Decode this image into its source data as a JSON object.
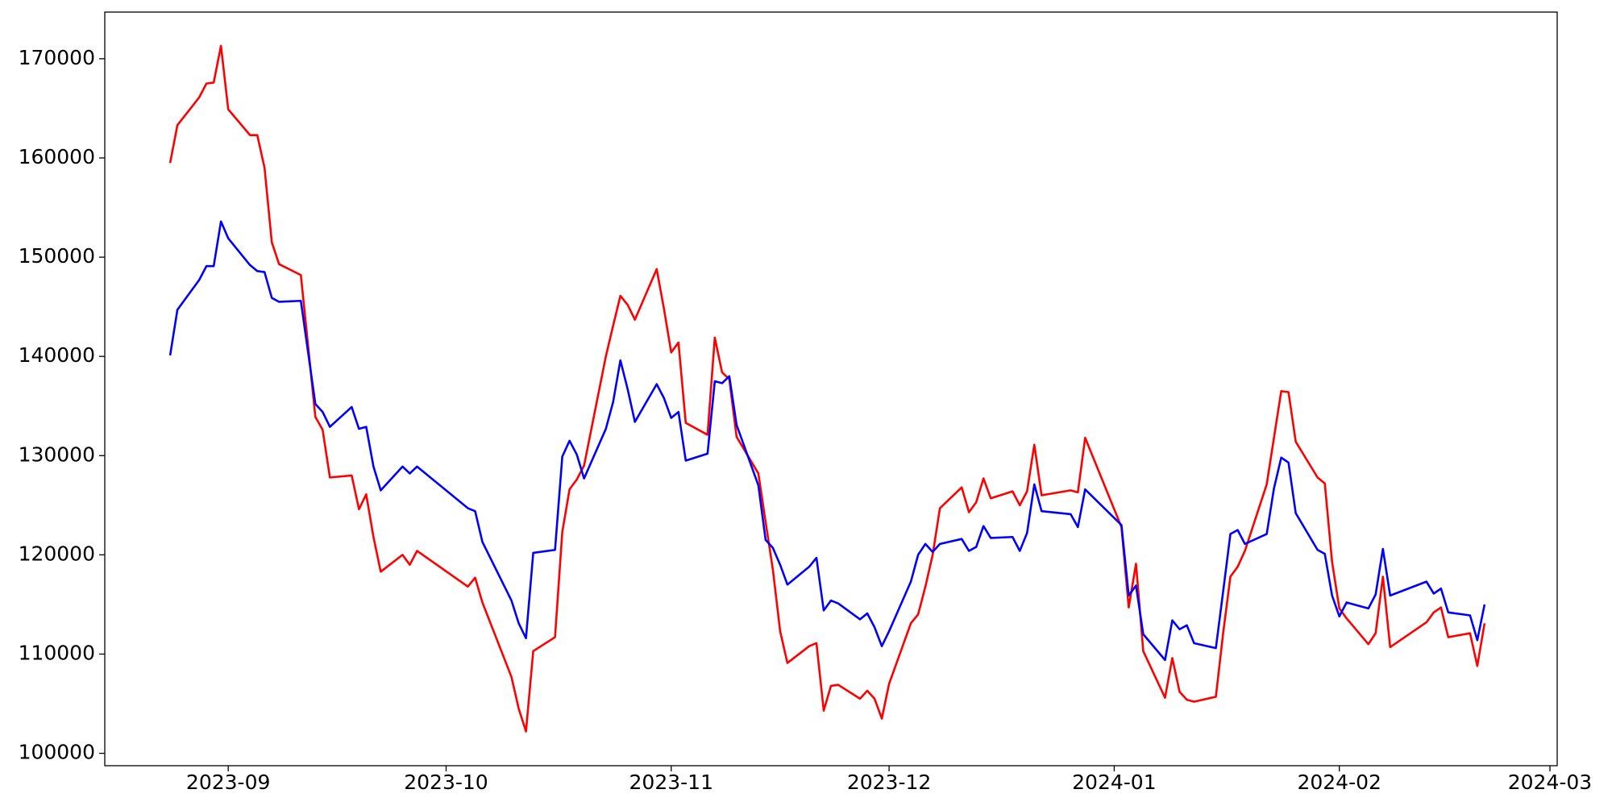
{
  "chart_data": {
    "type": "line",
    "x": [
      "2023-08-24",
      "2023-08-25",
      "2023-08-28",
      "2023-08-29",
      "2023-08-30",
      "2023-08-31",
      "2023-09-01",
      "2023-09-04",
      "2023-09-05",
      "2023-09-06",
      "2023-09-07",
      "2023-09-08",
      "2023-09-11",
      "2023-09-13",
      "2023-09-14",
      "2023-09-15",
      "2023-09-18",
      "2023-09-19",
      "2023-09-20",
      "2023-09-21",
      "2023-09-22",
      "2023-09-25",
      "2023-09-26",
      "2023-09-27",
      "2023-10-04",
      "2023-10-05",
      "2023-10-06",
      "2023-10-10",
      "2023-10-11",
      "2023-10-12",
      "2023-10-13",
      "2023-10-16",
      "2023-10-17",
      "2023-10-18",
      "2023-10-19",
      "2023-10-20",
      "2023-10-23",
      "2023-10-24",
      "2023-10-25",
      "2023-10-26",
      "2023-10-27",
      "2023-10-30",
      "2023-10-31",
      "2023-11-01",
      "2023-11-02",
      "2023-11-03",
      "2023-11-06",
      "2023-11-07",
      "2023-11-08",
      "2023-11-09",
      "2023-11-10",
      "2023-11-13",
      "2023-11-14",
      "2023-11-15",
      "2023-11-16",
      "2023-11-17",
      "2023-11-20",
      "2023-11-21",
      "2023-11-22",
      "2023-11-23",
      "2023-11-24",
      "2023-11-27",
      "2023-11-28",
      "2023-11-29",
      "2023-11-30",
      "2023-12-01",
      "2023-12-04",
      "2023-12-05",
      "2023-12-06",
      "2023-12-07",
      "2023-12-08",
      "2023-12-11",
      "2023-12-12",
      "2023-12-13",
      "2023-12-14",
      "2023-12-15",
      "2023-12-18",
      "2023-12-19",
      "2023-12-20",
      "2023-12-21",
      "2023-12-22",
      "2023-12-26",
      "2023-12-27",
      "2023-12-28",
      "2024-01-02",
      "2024-01-03",
      "2024-01-04",
      "2024-01-05",
      "2024-01-08",
      "2024-01-09",
      "2024-01-10",
      "2024-01-11",
      "2024-01-12",
      "2024-01-15",
      "2024-01-16",
      "2024-01-17",
      "2024-01-18",
      "2024-01-19",
      "2024-01-22",
      "2024-01-23",
      "2024-01-24",
      "2024-01-25",
      "2024-01-26",
      "2024-01-29",
      "2024-01-30",
      "2024-01-31",
      "2024-02-01",
      "2024-02-02",
      "2024-02-05",
      "2024-02-06",
      "2024-02-07",
      "2024-02-08",
      "2024-02-13",
      "2024-02-14",
      "2024-02-15",
      "2024-02-16",
      "2024-02-19",
      "2024-02-20",
      "2024-02-21"
    ],
    "series": [
      {
        "color": "#ff0000",
        "values": [
          159500,
          163300,
          166100,
          167500,
          167600,
          171300,
          164900,
          162300,
          162300,
          159000,
          151500,
          149300,
          148200,
          133900,
          132600,
          127800,
          128000,
          124600,
          126100,
          121800,
          118300,
          120000,
          119000,
          120400,
          116800,
          117700,
          115200,
          107700,
          104500,
          102200,
          110300,
          111700,
          122300,
          126600,
          127600,
          129000,
          140000,
          143100,
          146100,
          145200,
          143700,
          148800,
          144800,
          140400,
          141400,
          133300,
          132100,
          141900,
          138400,
          137700,
          131900,
          128200,
          123300,
          118500,
          112300,
          109100,
          110800,
          111100,
          104300,
          106800,
          106900,
          105500,
          106300,
          105500,
          103500,
          107000,
          113100,
          114000,
          116800,
          120000,
          124700,
          126800,
          124300,
          125300,
          127700,
          125700,
          126400,
          125000,
          126400,
          131100,
          126000,
          126500,
          126300,
          131800,
          122800,
          114700,
          119100,
          110300,
          105600,
          109600,
          106200,
          105400,
          105200,
          105700,
          112100,
          117800,
          118800,
          120400,
          127100,
          131800,
          136500,
          136400,
          131400,
          127800,
          127200,
          119300,
          114600,
          113600,
          111000,
          112100,
          117800,
          110700,
          113200,
          114200,
          114700,
          111700,
          112100,
          108800,
          113100
        ]
      },
      {
        "color": "#0000ff",
        "values": [
          140100,
          144700,
          147700,
          149100,
          149100,
          153600,
          151900,
          149200,
          148600,
          148500,
          145900,
          145500,
          145600,
          135200,
          134400,
          132900,
          134900,
          132700,
          132900,
          128900,
          126500,
          128900,
          128200,
          128900,
          124700,
          124400,
          121300,
          115400,
          113100,
          111600,
          120200,
          120500,
          129900,
          131500,
          130100,
          127700,
          132700,
          135400,
          139600,
          136700,
          133400,
          137200,
          135800,
          133800,
          134400,
          129500,
          130200,
          137500,
          137300,
          138000,
          133100,
          127000,
          121500,
          120700,
          119000,
          117000,
          118800,
          119700,
          114400,
          115400,
          115100,
          113500,
          114100,
          112700,
          110800,
          112300,
          117300,
          120000,
          121100,
          120300,
          121100,
          121600,
          120400,
          120800,
          122900,
          121700,
          121800,
          120400,
          122200,
          127100,
          124400,
          124100,
          122800,
          126600,
          123000,
          115900,
          116900,
          112000,
          109400,
          113400,
          112500,
          112900,
          111100,
          110600,
          116300,
          122100,
          122500,
          121100,
          122100,
          126700,
          129800,
          129300,
          124200,
          120500,
          120100,
          115900,
          113800,
          115200,
          114600,
          116000,
          120600,
          115900,
          117300,
          116100,
          116600,
          114200,
          113900,
          111400,
          115000
        ]
      }
    ],
    "xlim": [
      "2023-08-15",
      "2024-03-02"
    ],
    "xticks": [
      {
        "value": "2023-09-01",
        "label": "2023-09"
      },
      {
        "value": "2023-10-01",
        "label": "2023-10"
      },
      {
        "value": "2023-11-01",
        "label": "2023-11"
      },
      {
        "value": "2023-12-01",
        "label": "2023-12"
      },
      {
        "value": "2024-01-01",
        "label": "2024-01"
      },
      {
        "value": "2024-02-01",
        "label": "2024-02"
      },
      {
        "value": "2024-03-01",
        "label": "2024-03"
      }
    ],
    "ylim": [
      98750,
      174700
    ],
    "yticks": [
      100000,
      110000,
      120000,
      130000,
      140000,
      150000,
      160000,
      170000
    ],
    "grid": false
  }
}
